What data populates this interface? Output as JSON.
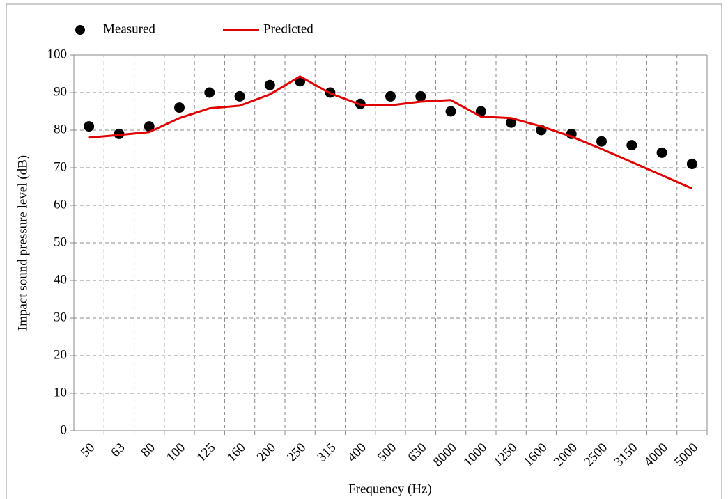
{
  "chart_data": {
    "type": "line",
    "x_label": "Frequency (Hz)",
    "y_label": "Impact sound pressure level (dB)",
    "categories": [
      "50",
      "63",
      "80",
      "100",
      "125",
      "160",
      "200",
      "250",
      "315",
      "400",
      "500",
      "630",
      "8000",
      "1000",
      "1250",
      "1600",
      "2000",
      "2500",
      "3150",
      "4000",
      "5000"
    ],
    "series": [
      {
        "name": "Measured",
        "color": "#000000",
        "style": "markers",
        "values": [
          81,
          79,
          81,
          86,
          90,
          89,
          92,
          93,
          90,
          87,
          89,
          89,
          85,
          85,
          82,
          80,
          79,
          77,
          76,
          74,
          71
        ]
      },
      {
        "name": "Predicted",
        "color": "#e00000",
        "style": "line",
        "values": [
          78,
          78.7,
          79.5,
          83.2,
          85.8,
          86.5,
          89.5,
          94.3,
          89.8,
          86.8,
          86.6,
          87.6,
          88,
          83.6,
          83.2,
          81,
          78.3,
          75,
          71.5,
          68,
          64.5
        ]
      }
    ],
    "ylim": [
      0,
      100
    ],
    "yticks": [
      0,
      10,
      20,
      30,
      40,
      50,
      60,
      70,
      80,
      90,
      100
    ],
    "grid": true,
    "legend": "top"
  }
}
